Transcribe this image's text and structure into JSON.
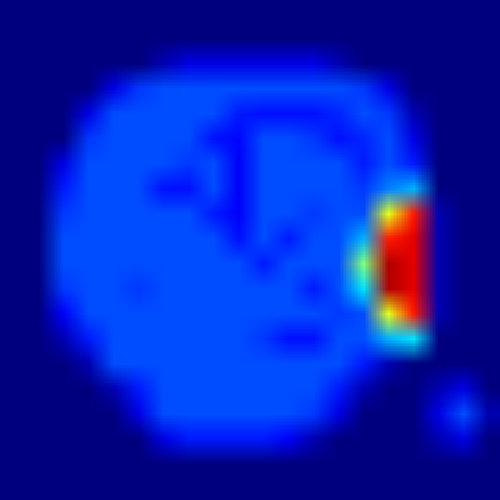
{
  "chart_data": {
    "type": "heatmap",
    "xlim": [
      0,
      20
    ],
    "ylim": [
      0,
      20
    ],
    "tick_labels": false,
    "color_range": [
      0,
      1
    ],
    "cells": [
      [
        0,
        0,
        0,
        0,
        0,
        0,
        0,
        0,
        0,
        0,
        0,
        0,
        0,
        0,
        0,
        0,
        0,
        0,
        0,
        0
      ],
      [
        0,
        0,
        0,
        0,
        0,
        0,
        0,
        0,
        0,
        0,
        0,
        0,
        0,
        0,
        0,
        0,
        0,
        0,
        0,
        0
      ],
      [
        0,
        0,
        0,
        0,
        0,
        0,
        0.05,
        0.1,
        0.1,
        0.1,
        0.1,
        0.1,
        0.1,
        0.05,
        0,
        0,
        0,
        0,
        0,
        0
      ],
      [
        0,
        0,
        0,
        0,
        0.1,
        0.18,
        0.2,
        0.2,
        0.2,
        0.2,
        0.2,
        0.2,
        0.2,
        0.2,
        0.18,
        0.1,
        0,
        0,
        0,
        0
      ],
      [
        0,
        0,
        0,
        0.1,
        0.2,
        0.2,
        0.2,
        0.2,
        0.2,
        0.15,
        0.14,
        0.14,
        0.14,
        0.16,
        0.2,
        0.18,
        0.05,
        0,
        0,
        0
      ],
      [
        0,
        0,
        0,
        0.18,
        0.2,
        0.2,
        0.2,
        0.2,
        0.14,
        0.13,
        0.2,
        0.2,
        0.18,
        0.14,
        0.16,
        0.2,
        0.1,
        0,
        0,
        0
      ],
      [
        0,
        0,
        0.1,
        0.2,
        0.2,
        0.2,
        0.2,
        0.18,
        0.2,
        0.12,
        0.2,
        0.2,
        0.2,
        0.2,
        0.15,
        0.2,
        0.15,
        0,
        0,
        0
      ],
      [
        0,
        0,
        0.15,
        0.2,
        0.2,
        0.2,
        0.14,
        0.14,
        0.2,
        0.12,
        0.2,
        0.2,
        0.2,
        0.2,
        0.18,
        0.25,
        0.3,
        0,
        0,
        0
      ],
      [
        0,
        0,
        0.18,
        0.2,
        0.2,
        0.2,
        0.2,
        0.2,
        0.15,
        0.12,
        0.2,
        0.2,
        0.18,
        0.2,
        0.2,
        0.6,
        0.85,
        0.05,
        0,
        0
      ],
      [
        0,
        0,
        0.2,
        0.2,
        0.2,
        0.2,
        0.2,
        0.2,
        0.2,
        0.14,
        0.2,
        0.15,
        0.2,
        0.2,
        0.3,
        0.85,
        0.9,
        0.05,
        0,
        0
      ],
      [
        0,
        0,
        0.2,
        0.2,
        0.2,
        0.2,
        0.2,
        0.2,
        0.2,
        0.2,
        0.15,
        0.2,
        0.2,
        0.2,
        0.5,
        0.95,
        0.9,
        0.05,
        0,
        0
      ],
      [
        0,
        0,
        0.18,
        0.2,
        0.2,
        0.18,
        0.2,
        0.2,
        0.2,
        0.2,
        0.2,
        0.2,
        0.15,
        0.2,
        0.35,
        0.95,
        0.9,
        0.05,
        0,
        0
      ],
      [
        0,
        0,
        0.12,
        0.2,
        0.2,
        0.2,
        0.2,
        0.2,
        0.2,
        0.2,
        0.2,
        0.2,
        0.2,
        0.18,
        0.2,
        0.6,
        0.85,
        0.05,
        0,
        0
      ],
      [
        0,
        0,
        0.05,
        0.15,
        0.2,
        0.2,
        0.2,
        0.2,
        0.2,
        0.2,
        0.18,
        0.14,
        0.14,
        0.2,
        0.2,
        0.3,
        0.35,
        0,
        0,
        0
      ],
      [
        0,
        0,
        0,
        0.05,
        0.2,
        0.2,
        0.2,
        0.2,
        0.2,
        0.2,
        0.2,
        0.2,
        0.2,
        0.2,
        0.15,
        0.05,
        0,
        0,
        0,
        0
      ],
      [
        0,
        0,
        0,
        0,
        0.05,
        0.15,
        0.2,
        0.2,
        0.2,
        0.2,
        0.2,
        0.2,
        0.2,
        0.15,
        0.05,
        0,
        0,
        0.05,
        0.1,
        0
      ],
      [
        0,
        0,
        0,
        0,
        0,
        0.1,
        0.2,
        0.2,
        0.2,
        0.2,
        0.2,
        0.2,
        0.18,
        0.1,
        0,
        0,
        0,
        0.1,
        0.2,
        0.05
      ],
      [
        0,
        0,
        0,
        0,
        0,
        0,
        0.1,
        0.15,
        0.15,
        0.15,
        0.15,
        0.12,
        0.05,
        0,
        0,
        0,
        0,
        0.05,
        0.1,
        0
      ],
      [
        0,
        0,
        0,
        0,
        0,
        0,
        0,
        0,
        0,
        0,
        0,
        0,
        0,
        0,
        0,
        0,
        0,
        0,
        0,
        0
      ],
      [
        0,
        0,
        0,
        0,
        0,
        0,
        0,
        0,
        0,
        0,
        0,
        0,
        0,
        0,
        0,
        0,
        0,
        0,
        0,
        0
      ]
    ]
  }
}
